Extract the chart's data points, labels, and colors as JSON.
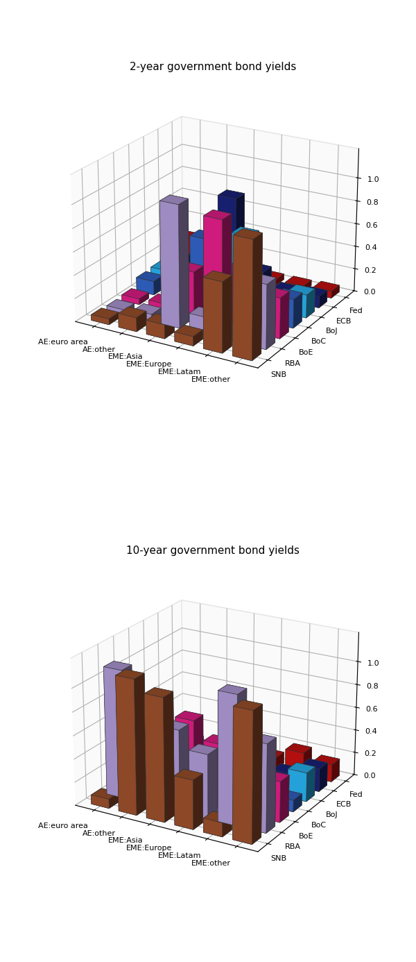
{
  "title_2yr": "2-year government bond yields",
  "title_10yr": "10-year government bond yields",
  "x_labels": [
    "AE:euro area",
    "AE:other",
    "EME:Asia",
    "EME:Europe",
    "EME:Latam",
    "EME:other"
  ],
  "z_labels": [
    "Fed",
    "ECB",
    "BoJ",
    "BoC",
    "BoE",
    "RBA",
    "SNB"
  ],
  "colors": {
    "Fed": "#CC1111",
    "ECB": "#1A237E",
    "BoJ": "#29B6F6",
    "BoC": "#3366CC",
    "BoE": "#E91E8C",
    "RBA": "#B39DDB",
    "SNB": "#A0522D"
  },
  "data_2yr": {
    "AE:euro area": {
      "Fed": 0.25,
      "ECB": 0.15,
      "BoJ": 0.13,
      "BoC": 0.12,
      "BoE": 0.05,
      "RBA": 0.04,
      "SNB": 0.05
    },
    "AE:other": {
      "Fed": 0.08,
      "ECB": 0.15,
      "BoJ": 0.18,
      "BoC": 0.18,
      "BoE": 0.06,
      "RBA": 0.06,
      "SNB": 0.12
    },
    "EME:Asia": {
      "Fed": 0.1,
      "ECB": 0.8,
      "BoJ": 0.45,
      "BoC": 0.6,
      "BoE": 0.4,
      "RBA": 1.05,
      "SNB": 0.12
    },
    "EME:Europe": {
      "Fed": 0.05,
      "ECB": 0.2,
      "BoJ": 0.6,
      "BoC": 0.35,
      "BoE": 0.9,
      "RBA": 0.15,
      "SNB": 0.08
    },
    "EME:Latam": {
      "Fed": 0.05,
      "ECB": 0.08,
      "BoJ": 0.08,
      "BoC": 0.1,
      "BoE": 0.55,
      "RBA": 0.07,
      "SNB": 0.6
    },
    "EME:other": {
      "Fed": 0.06,
      "ECB": 0.1,
      "BoJ": 0.2,
      "BoC": 0.25,
      "BoE": 0.35,
      "RBA": 0.55,
      "SNB": 1.0
    }
  },
  "data_10yr": {
    "AE:euro area": {
      "Fed": 0.05,
      "ECB": 0.15,
      "BoJ": 0.1,
      "BoC": 0.3,
      "BoE": 0.35,
      "RBA": 1.1,
      "SNB": 0.08
    },
    "AE:other": {
      "Fed": 0.08,
      "ECB": 0.1,
      "BoJ": 0.3,
      "BoC": 0.25,
      "BoE": 0.3,
      "RBA": 0.65,
      "SNB": 1.15
    },
    "EME:Asia": {
      "Fed": 0.06,
      "ECB": 0.62,
      "BoJ": 0.3,
      "BoC": 0.35,
      "BoE": 0.7,
      "RBA": 0.7,
      "SNB": 1.05
    },
    "EME:Europe": {
      "Fed": 0.1,
      "ECB": 0.08,
      "BoJ": 0.35,
      "BoC": 0.35,
      "BoE": 0.55,
      "RBA": 0.55,
      "SNB": 0.42
    },
    "EME:Latam": {
      "Fed": 0.2,
      "ECB": 0.1,
      "BoJ": 0.1,
      "BoC": 0.35,
      "BoE": 0.3,
      "RBA": 1.1,
      "SNB": 0.12
    },
    "EME:other": {
      "Fed": 0.15,
      "ECB": 0.2,
      "BoJ": 0.25,
      "BoC": 0.1,
      "BoE": 0.35,
      "RBA": 0.75,
      "SNB": 1.1
    }
  },
  "elev": 22,
  "azim": -60,
  "bar_width": 0.65,
  "bar_depth": 0.65,
  "zlim": [
    0,
    1.25
  ],
  "zticks": [
    0.0,
    0.2,
    0.4,
    0.6,
    0.8,
    1.0
  ],
  "fontsize_ticks": 8,
  "fontsize_title": 11
}
